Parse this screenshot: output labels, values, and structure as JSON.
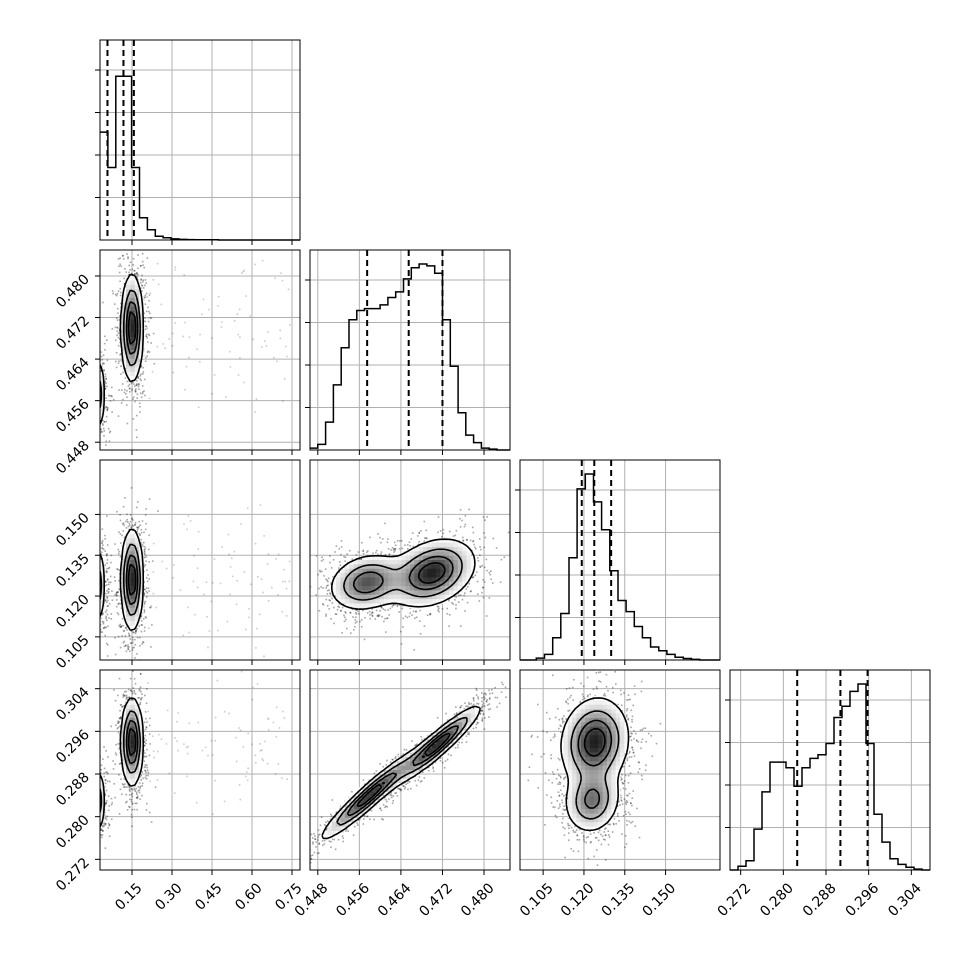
{
  "chart_data": {
    "type": "corner",
    "grid": true,
    "parameters": [
      {
        "range": [
          0.03,
          0.78
        ],
        "ticks": [
          "0.15",
          "0.30",
          "0.45",
          "0.60",
          "0.75"
        ],
        "tick_values": [
          0.15,
          0.3,
          0.45,
          0.6,
          0.75
        ],
        "quantiles": [
          0.058,
          0.118,
          0.157
        ],
        "histogram": {
          "edges": [
            0.03,
            0.0596,
            0.0892,
            0.1188,
            0.1484,
            0.178,
            0.2076,
            0.2372,
            0.2668,
            0.2964,
            0.326,
            0.3556,
            0.3852,
            0.4148,
            0.4444,
            0.474,
            0.5036,
            0.5332,
            0.5628,
            0.5924,
            0.622,
            0.6516,
            0.6812,
            0.7108,
            0.7404,
            0.78
          ],
          "counts": [
            0.58,
            0.39,
            0.88,
            0.88,
            0.39,
            0.12,
            0.055,
            0.02,
            0.012,
            0.006,
            0.003,
            0.002,
            0.001,
            0.001,
            0.001,
            0,
            0,
            0,
            0,
            0,
            0,
            0,
            0,
            0,
            0
          ]
        }
      },
      {
        "range": [
          0.4465,
          0.485
        ],
        "ticks": [
          "0.448",
          "0.456",
          "0.464",
          "0.472",
          "0.480"
        ],
        "tick_values": [
          0.448,
          0.456,
          0.464,
          0.472,
          0.48
        ],
        "quantiles": [
          0.4575,
          0.4655,
          0.472
        ],
        "histogram": {
          "edges": [
            0.4465,
            0.448,
            0.4495,
            0.451,
            0.4525,
            0.454,
            0.4555,
            0.457,
            0.4585,
            0.46,
            0.4615,
            0.463,
            0.4645,
            0.466,
            0.4675,
            0.469,
            0.4705,
            0.472,
            0.4735,
            0.475,
            0.4765,
            0.478,
            0.4795,
            0.481,
            0.4825,
            0.485
          ],
          "counts": [
            0.01,
            0.03,
            0.15,
            0.35,
            0.55,
            0.7,
            0.75,
            0.76,
            0.76,
            0.78,
            0.82,
            0.85,
            0.92,
            0.98,
            1.0,
            0.99,
            0.95,
            0.7,
            0.45,
            0.2,
            0.08,
            0.04,
            0.01,
            0.005,
            0.0
          ]
        }
      },
      {
        "range": [
          0.0965,
          0.17
        ],
        "ticks": [
          "0.105",
          "0.120",
          "0.135",
          "0.150"
        ],
        "tick_values": [
          0.105,
          0.12,
          0.135,
          0.15
        ],
        "quantiles": [
          0.1192,
          0.1238,
          0.13
        ],
        "histogram": {
          "edges": [
            0.0965,
            0.0995,
            0.1025,
            0.1055,
            0.1085,
            0.1115,
            0.1145,
            0.1175,
            0.1205,
            0.1235,
            0.1265,
            0.1295,
            0.1325,
            0.1355,
            0.1385,
            0.1415,
            0.1445,
            0.1475,
            0.1505,
            0.1535,
            0.1565,
            0.1595,
            0.1625,
            0.1655,
            0.1685,
            0.17
          ],
          "counts": [
            0.0,
            0.0,
            0.01,
            0.03,
            0.12,
            0.25,
            0.55,
            0.92,
            1.0,
            0.85,
            0.7,
            0.48,
            0.32,
            0.26,
            0.18,
            0.12,
            0.07,
            0.05,
            0.03,
            0.015,
            0.008,
            0.003,
            0.0,
            0.0,
            0.0
          ]
        }
      },
      {
        "range": [
          0.27,
          0.3075
        ],
        "ticks": [
          "0.272",
          "0.280",
          "0.288",
          "0.296",
          "0.304"
        ],
        "tick_values": [
          0.272,
          0.28,
          0.288,
          0.296,
          0.304
        ],
        "quantiles": [
          0.2826,
          0.2907,
          0.2958
        ],
        "histogram": {
          "edges": [
            0.27,
            0.2715,
            0.273,
            0.2745,
            0.276,
            0.2775,
            0.279,
            0.2805,
            0.282,
            0.2835,
            0.285,
            0.2865,
            0.288,
            0.2895,
            0.291,
            0.2925,
            0.294,
            0.2955,
            0.297,
            0.2985,
            0.3,
            0.3015,
            0.303,
            0.3045,
            0.306,
            0.3075
          ],
          "counts": [
            0.0,
            0.02,
            0.05,
            0.22,
            0.42,
            0.58,
            0.58,
            0.55,
            0.45,
            0.55,
            0.6,
            0.62,
            0.68,
            0.82,
            0.88,
            0.96,
            1.0,
            0.68,
            0.3,
            0.15,
            0.06,
            0.03,
            0.015,
            0.005,
            0.0
          ]
        }
      }
    ],
    "pairs": [
      {
        "row": 1,
        "col": 0,
        "modes": [
          {
            "x": 0.01,
            "y": 0.4572,
            "sx": 0.018,
            "sy": 0.0035,
            "w": 0.45,
            "rho": 0.0
          },
          {
            "x": 0.15,
            "y": 0.47,
            "sx": 0.02,
            "sy": 0.005,
            "w": 0.55,
            "rho": 0.0
          }
        ]
      },
      {
        "row": 2,
        "col": 0,
        "modes": [
          {
            "x": 0.01,
            "y": 0.124,
            "sx": 0.018,
            "sy": 0.007,
            "w": 0.45,
            "rho": 0.0
          },
          {
            "x": 0.15,
            "y": 0.126,
            "sx": 0.02,
            "sy": 0.009,
            "w": 0.55,
            "rho": 0.0
          }
        ]
      },
      {
        "row": 2,
        "col": 1,
        "modes": [
          {
            "x": 0.4575,
            "y": 0.125,
            "sx": 0.0035,
            "sy": 0.005,
            "w": 0.45,
            "rho": 0.2
          },
          {
            "x": 0.47,
            "y": 0.1285,
            "sx": 0.004,
            "sy": 0.006,
            "w": 0.55,
            "rho": 0.3
          }
        ]
      },
      {
        "row": 3,
        "col": 0,
        "modes": [
          {
            "x": 0.01,
            "y": 0.283,
            "sx": 0.018,
            "sy": 0.003,
            "w": 0.45,
            "rho": 0.0
          },
          {
            "x": 0.15,
            "y": 0.294,
            "sx": 0.02,
            "sy": 0.004,
            "w": 0.55,
            "rho": 0.0
          }
        ]
      },
      {
        "row": 3,
        "col": 1,
        "modes": [
          {
            "x": 0.458,
            "y": 0.284,
            "sx": 0.0045,
            "sy": 0.004,
            "w": 0.45,
            "rho": 0.95
          },
          {
            "x": 0.471,
            "y": 0.2935,
            "sx": 0.004,
            "sy": 0.0035,
            "w": 0.55,
            "rho": 0.93
          }
        ]
      },
      {
        "row": 3,
        "col": 2,
        "modes": [
          {
            "x": 0.123,
            "y": 0.283,
            "sx": 0.005,
            "sy": 0.003,
            "w": 0.4,
            "rho": 0.1
          },
          {
            "x": 0.124,
            "y": 0.294,
            "sx": 0.006,
            "sy": 0.004,
            "w": 0.6,
            "rho": 0.1
          }
        ]
      }
    ],
    "colors": {
      "line": "#000000",
      "grid": "#b0b0b0",
      "points": "#000000",
      "fill": "#000000"
    }
  }
}
